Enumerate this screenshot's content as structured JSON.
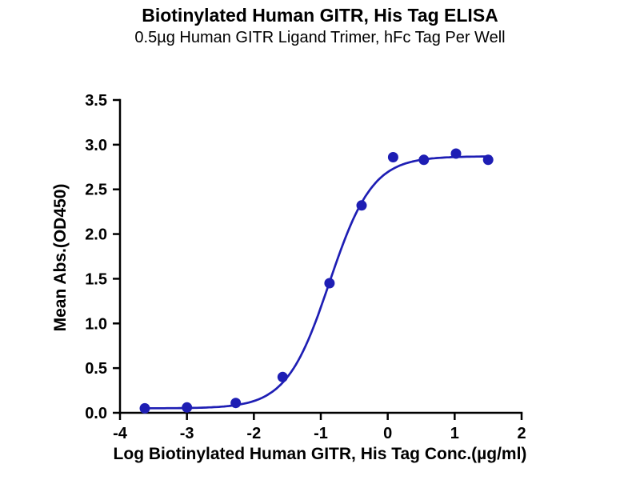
{
  "chart_data": {
    "type": "scatter",
    "title": "Biotinylated Human GITR, His Tag ELISA",
    "subtitle": "0.5µg Human GITR Ligand Trimer, hFc Tag Per Well",
    "xlabel": "Log Biotinylated Human GITR, His Tag Conc.(µg/ml)",
    "ylabel": "Mean Abs.(OD450)",
    "xlim": [
      -4,
      2
    ],
    "ylim": [
      0,
      3.5
    ],
    "x_ticks": [
      -4,
      -3,
      -2,
      -1,
      0,
      1,
      2
    ],
    "y_ticks": [
      0.0,
      0.5,
      1.0,
      1.5,
      2.0,
      2.5,
      3.0,
      3.5
    ],
    "grid": false,
    "legend": "none",
    "points": [
      {
        "x": -3.63,
        "y": 0.05
      },
      {
        "x": -3.0,
        "y": 0.06
      },
      {
        "x": -2.27,
        "y": 0.11
      },
      {
        "x": -1.57,
        "y": 0.4
      },
      {
        "x": -0.87,
        "y": 1.45
      },
      {
        "x": -0.39,
        "y": 2.32
      },
      {
        "x": 0.08,
        "y": 2.86
      },
      {
        "x": 0.54,
        "y": 2.83
      },
      {
        "x": 1.02,
        "y": 2.9
      },
      {
        "x": 1.5,
        "y": 2.83
      }
    ],
    "fit": {
      "model": "4PL",
      "bottom": 0.05,
      "top": 2.87,
      "logEC50": -0.87,
      "hill": 1.35,
      "x_start": -3.63,
      "x_end": 1.55
    },
    "accent_color": "#1e1eb4",
    "axis_color": "#000000"
  }
}
